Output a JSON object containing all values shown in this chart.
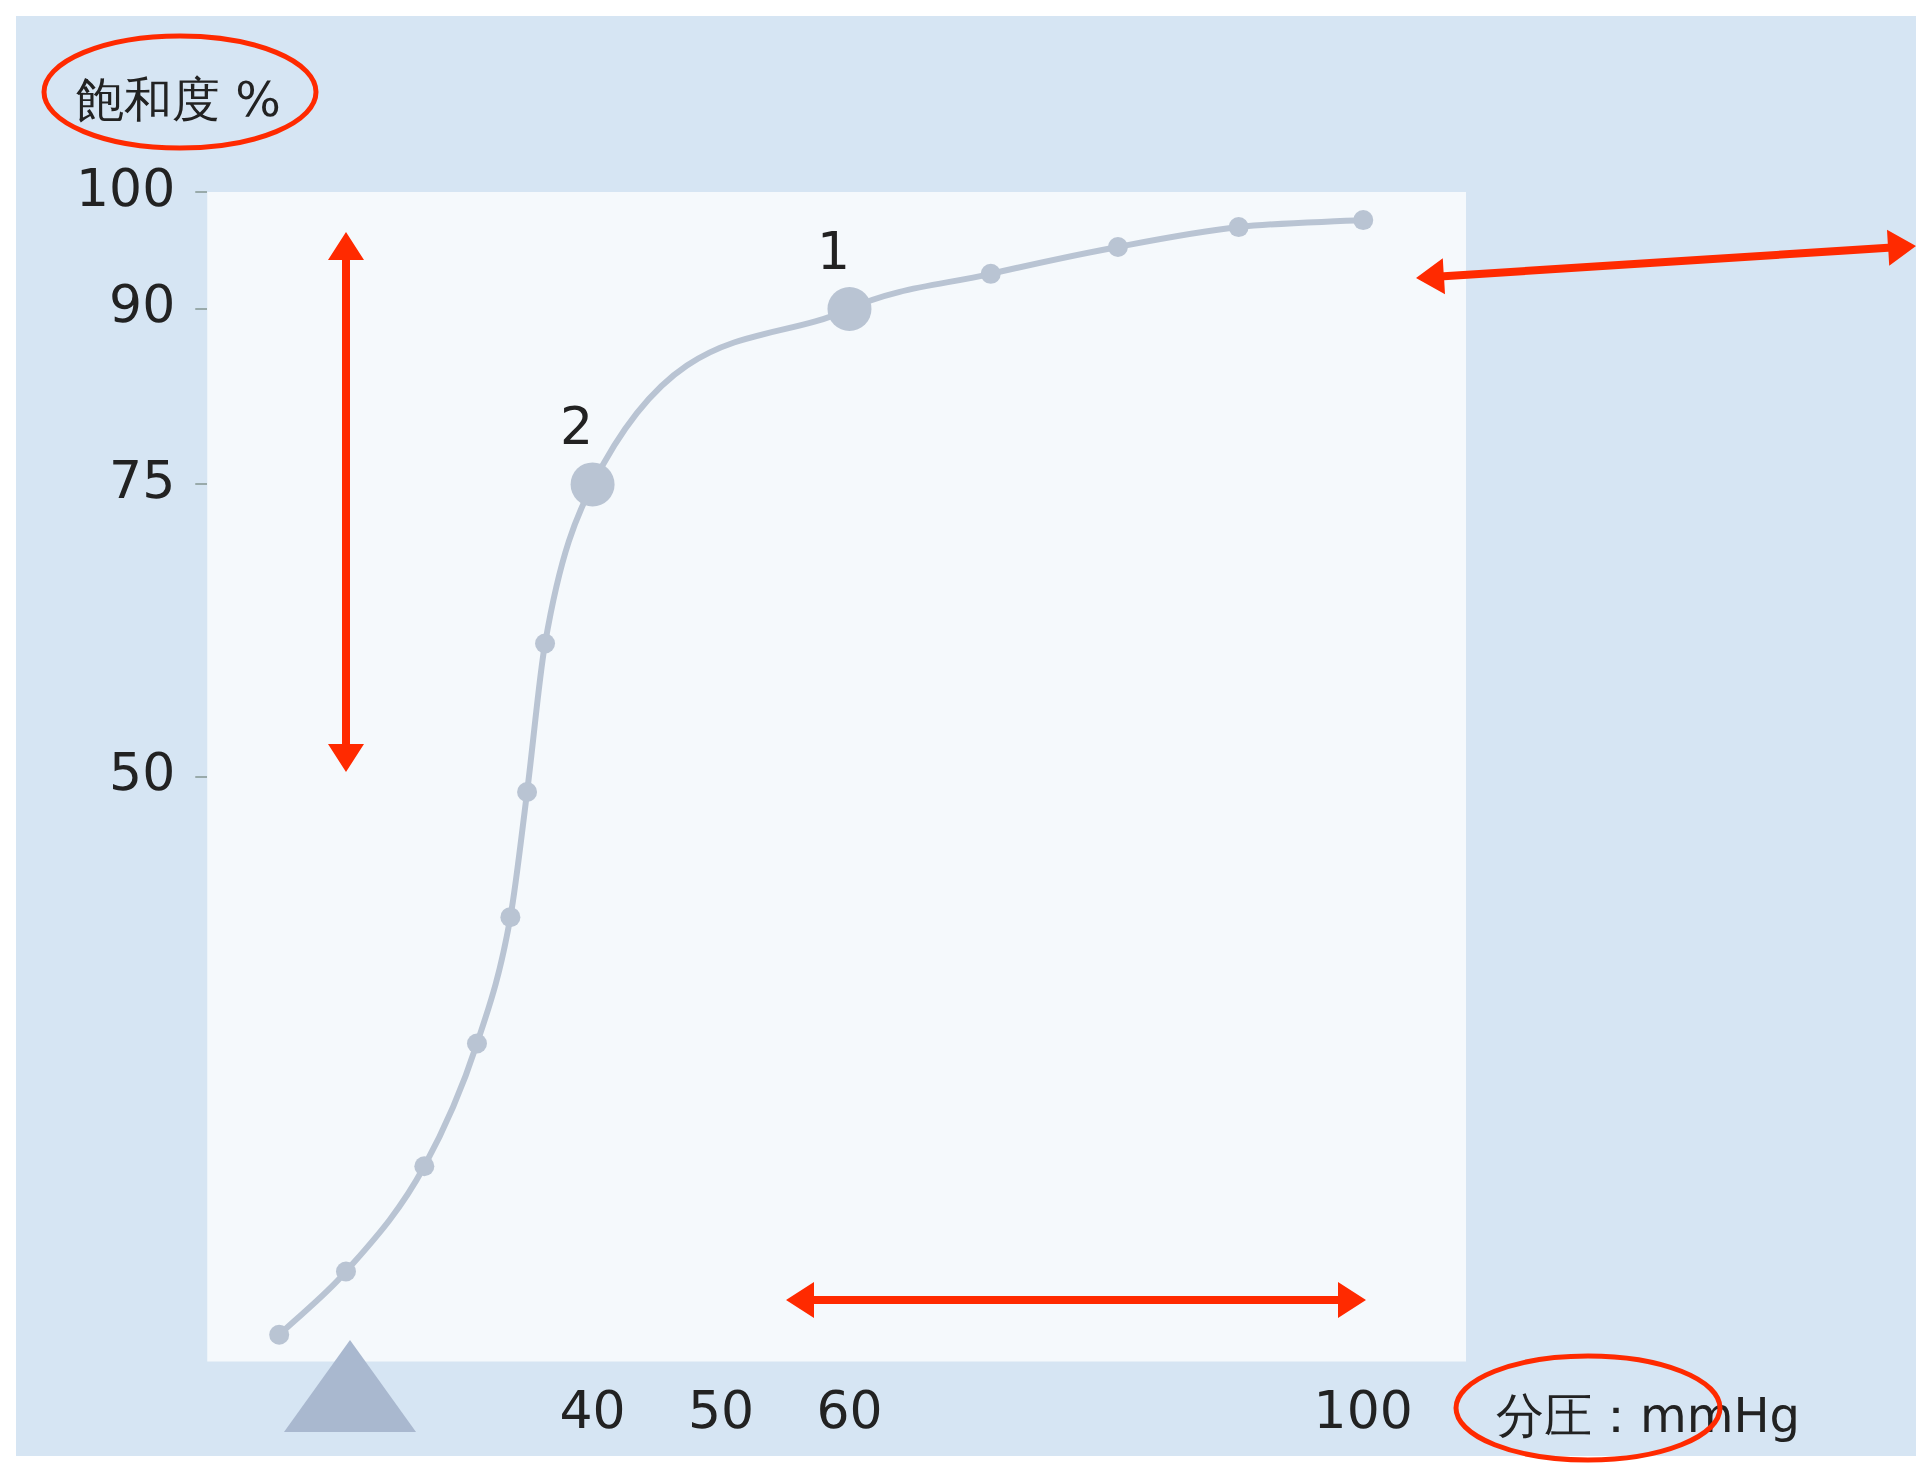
{
  "chart_data": {
    "type": "line",
    "xlabel": "分圧：mmHg",
    "ylabel": "飽和度 %",
    "x": [
      15.6,
      20.8,
      26.9,
      31,
      33.6,
      34.9,
      36.3,
      40,
      60,
      71,
      80.9,
      90.3,
      100
    ],
    "series": [
      {
        "color": "#b9c4d3",
        "values": [
          2.3,
          7.7,
          16.7,
          27.2,
          38,
          48.7,
          61.4,
          75,
          90,
          93,
          95.3,
          97,
          97.6
        ]
      }
    ],
    "xlim": [
      10,
      108
    ],
    "xticks": [
      40,
      50,
      60,
      100
    ],
    "ylim": [
      0,
      100
    ],
    "yticks": [
      50,
      75,
      90,
      100
    ],
    "annotations": [
      {
        "text": "1",
        "x": 60,
        "y": 90
      },
      {
        "text": "2",
        "x": 40,
        "y": 75
      }
    ],
    "grid": false,
    "legend": false,
    "marker": "circle",
    "line_style": "solid"
  }
}
